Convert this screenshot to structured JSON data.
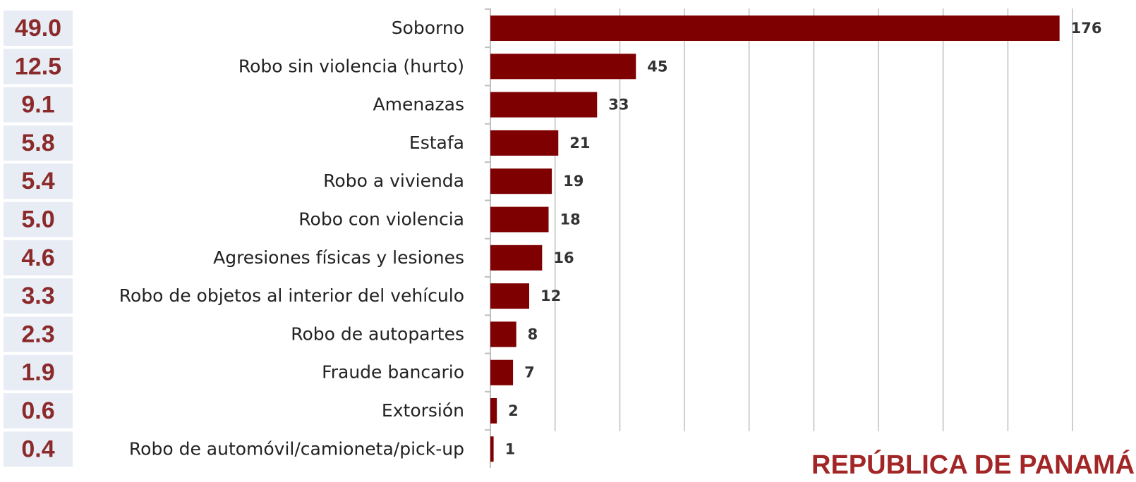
{
  "chart_data": {
    "type": "hbar",
    "categories": [
      "Soborno",
      "Robo sin violencia (hurto)",
      "Amenazas",
      "Estafa",
      "Robo a vivienda",
      "Robo con violencia",
      "Agresiones físicas y lesiones",
      "Robo de objetos al interior del vehículo",
      "Robo de autopartes",
      "Fraude bancario",
      "Extorsión",
      "Robo de automóvil/camioneta/pick-up"
    ],
    "values": [
      176,
      45,
      33,
      21,
      19,
      18,
      16,
      12,
      8,
      7,
      2,
      1
    ],
    "color": "#7f0000",
    "shares": [
      "49.0",
      "12.5",
      "9.1",
      "5.8",
      "5.4",
      "5.0",
      "4.6",
      "3.3",
      "2.3",
      "1.9",
      "0.6",
      "0.4"
    ],
    "xlim": [
      0,
      180
    ],
    "xticks": [
      0,
      20,
      40,
      60,
      80,
      100,
      120,
      140,
      160,
      180
    ],
    "grid": true,
    "footer": "REPÚBLICA DE PANAMÁ"
  }
}
